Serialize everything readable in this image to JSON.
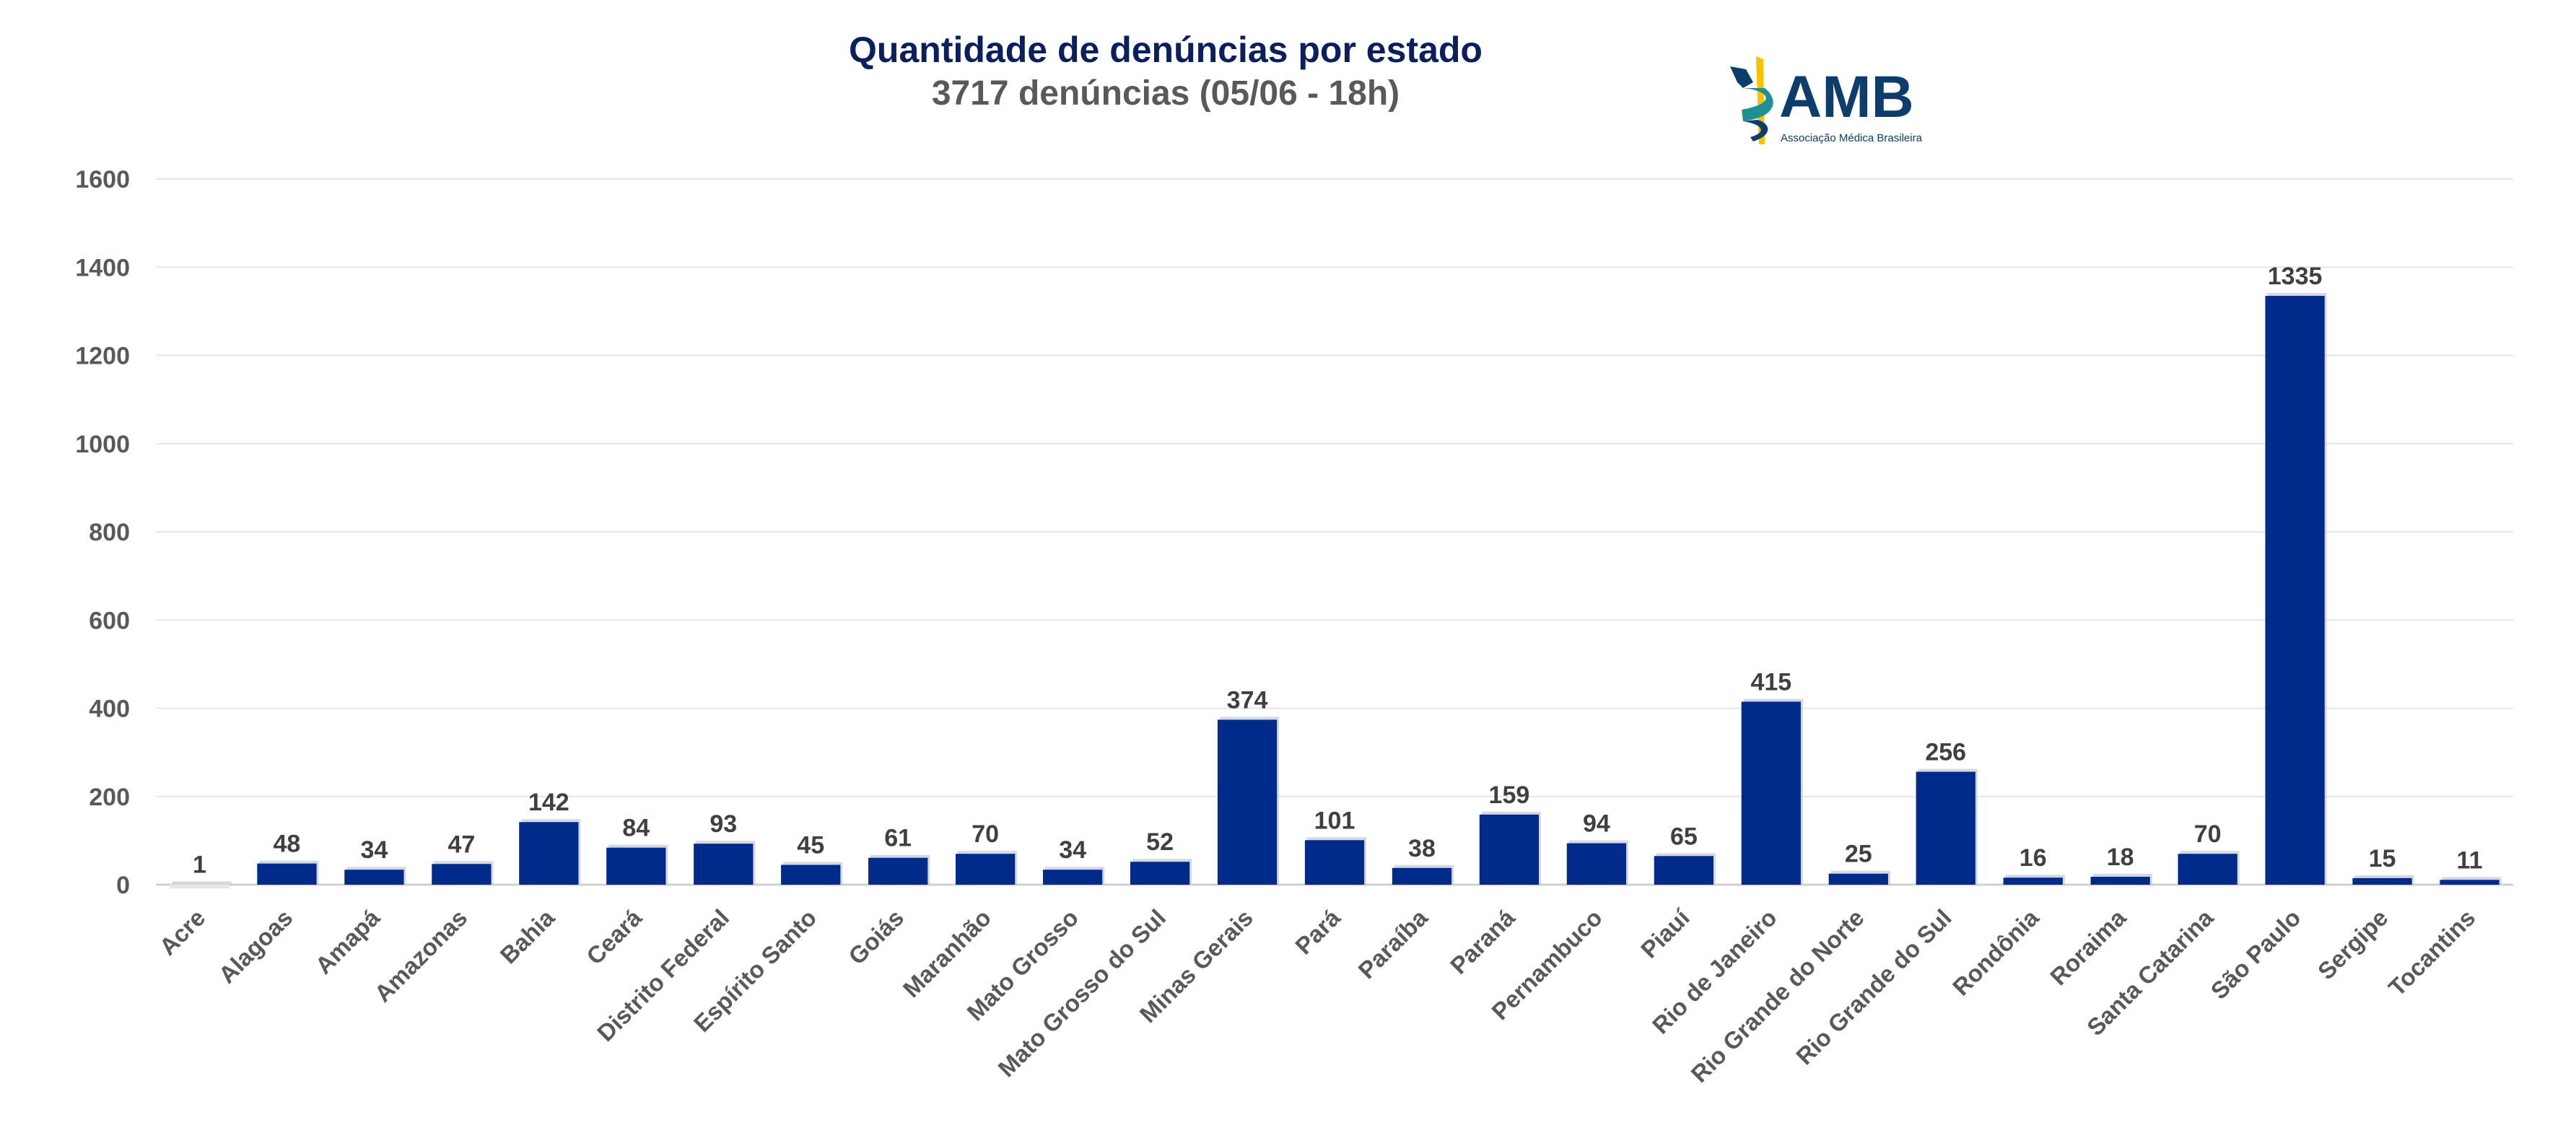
{
  "chart_data": {
    "type": "bar",
    "title": "Quantidade de denúncias por estado",
    "subtitle": "3717 denúncias (05/06 - 18h)",
    "xlabel": "",
    "ylabel": "",
    "ylim": [
      0,
      1600
    ],
    "yticks": [
      0,
      200,
      400,
      600,
      800,
      1000,
      1200,
      1400,
      1600
    ],
    "grid": true,
    "categories": [
      "Acre",
      "Alagoas",
      "Amapá",
      "Amazonas",
      "Bahia",
      "Ceará",
      "Distrito Federal",
      "Espírito Santo",
      "Goiás",
      "Maranhão",
      "Mato Grosso",
      "Mato Grosso do Sul",
      "Minas Gerais",
      "Pará",
      "Paraíba",
      "Paraná",
      "Pernambuco",
      "Piauí",
      "Rio de Janeiro",
      "Rio Grande do Norte",
      "Rio Grande do Sul",
      "Rondônia",
      "Roraima",
      "Santa Catarina",
      "São Paulo",
      "Sergipe",
      "Tocantins"
    ],
    "values": [
      1,
      48,
      34,
      47,
      142,
      84,
      93,
      45,
      61,
      70,
      34,
      52,
      374,
      101,
      38,
      159,
      94,
      65,
      415,
      25,
      256,
      16,
      18,
      70,
      1335,
      15,
      11
    ],
    "bar_color": "#002b8a",
    "first_bar_color": "#e6e6e6"
  },
  "logo": {
    "text": "AMB",
    "subtext": "Associação Médica Brasileira",
    "colors": {
      "navy": "#0d3d6b",
      "teal": "#1f8f8f",
      "yellow": "#f5c400"
    }
  }
}
